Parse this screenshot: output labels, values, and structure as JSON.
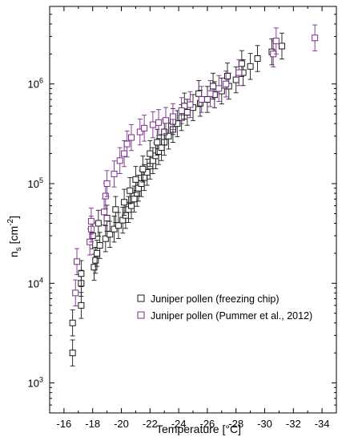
{
  "chart_data": {
    "type": "scatter",
    "xlabel": "Temperature [°C]",
    "ylabel_main": "n",
    "ylabel_sub": "s",
    "ylabel_unit_pre": " [cm",
    "ylabel_unit_sup": "-2",
    "ylabel_unit_post": "]",
    "xlim": [
      -15,
      -35
    ],
    "ylim": [
      500,
      6000000
    ],
    "yscale": "log",
    "x_ticks": [
      {
        "value": -16,
        "label": "-16"
      },
      {
        "value": -18,
        "label": "-18"
      },
      {
        "value": -20,
        "label": "-20"
      },
      {
        "value": -22,
        "label": "-22"
      },
      {
        "value": -24,
        "label": "-24"
      },
      {
        "value": -26,
        "label": "-26"
      },
      {
        "value": -28,
        "label": "-28"
      },
      {
        "value": -30,
        "label": "-30"
      },
      {
        "value": -32,
        "label": "-32"
      },
      {
        "value": -34,
        "label": "-34"
      }
    ],
    "y_ticks": [
      {
        "value": 1000,
        "base": "10",
        "exp": "3"
      },
      {
        "value": 10000,
        "base": "10",
        "exp": "4"
      },
      {
        "value": 100000,
        "base": "10",
        "exp": "5"
      },
      {
        "value": 1000000,
        "base": "10",
        "exp": "6"
      }
    ],
    "legend": {
      "placement": "bottom-right"
    },
    "series": [
      {
        "name": "Juniper pollen (freezing chip)",
        "color": "#1a1a1a",
        "marker": "open-square",
        "points": [
          [
            -16.6,
            2000
          ],
          [
            -16.6,
            4000
          ],
          [
            -17.2,
            6000
          ],
          [
            -17.2,
            10000
          ],
          [
            -17.2,
            12500
          ],
          [
            -18.1,
            14500
          ],
          [
            -18.2,
            17000
          ],
          [
            -18.3,
            20000
          ],
          [
            -18.5,
            24000
          ],
          [
            -18.9,
            28000
          ],
          [
            -19.2,
            31000
          ],
          [
            -19.5,
            35000
          ],
          [
            -19.8,
            38000
          ],
          [
            -20.1,
            43000
          ],
          [
            -20.3,
            48000
          ],
          [
            -20.5,
            55000
          ],
          [
            -20.7,
            60000
          ],
          [
            -20.9,
            70000
          ],
          [
            -21.1,
            80000
          ],
          [
            -21.2,
            90000
          ],
          [
            -21.4,
            100000
          ],
          [
            -21.6,
            115000
          ],
          [
            -21.8,
            130000
          ],
          [
            -22.0,
            150000
          ],
          [
            -22.2,
            170000
          ],
          [
            -22.4,
            190000
          ],
          [
            -22.6,
            210000
          ],
          [
            -22.8,
            230000
          ],
          [
            -23.0,
            260000
          ],
          [
            -23.3,
            300000
          ],
          [
            -23.6,
            350000
          ],
          [
            -23.9,
            400000
          ],
          [
            -24.2,
            460000
          ],
          [
            -24.6,
            520000
          ],
          [
            -25.0,
            580000
          ],
          [
            -25.5,
            640000
          ],
          [
            -26.0,
            700000
          ],
          [
            -26.5,
            780000
          ],
          [
            -27.0,
            850000
          ],
          [
            -27.5,
            950000
          ],
          [
            -28.0,
            1100000
          ],
          [
            -28.5,
            1300000
          ],
          [
            -29.0,
            1500000
          ],
          [
            -29.5,
            1800000
          ],
          [
            -30.5,
            2100000
          ],
          [
            -31.2,
            2400000
          ],
          [
            -18.0,
            30000
          ],
          [
            -18.4,
            40000
          ],
          [
            -19.0,
            45000
          ],
          [
            -19.6,
            55000
          ],
          [
            -20.2,
            65000
          ],
          [
            -20.6,
            85000
          ],
          [
            -21.0,
            110000
          ],
          [
            -21.5,
            140000
          ],
          [
            -22.0,
            200000
          ],
          [
            -22.5,
            260000
          ],
          [
            -23.0,
            330000
          ],
          [
            -23.6,
            420000
          ],
          [
            -24.4,
            600000
          ],
          [
            -25.4,
            800000
          ],
          [
            -26.4,
            950000
          ],
          [
            -27.4,
            1200000
          ],
          [
            -28.4,
            1600000
          ]
        ]
      },
      {
        "name": "Juniper pollen (Pummer et al., 2012)",
        "color": "#7b2d8e",
        "marker": "open-square",
        "points": [
          [
            -16.8,
            8000
          ],
          [
            -16.9,
            16500
          ],
          [
            -17.8,
            26000
          ],
          [
            -17.9,
            35000
          ],
          [
            -17.9,
            42000
          ],
          [
            -18.8,
            52000
          ],
          [
            -18.9,
            75000
          ],
          [
            -19.0,
            100000
          ],
          [
            -19.5,
            125000
          ],
          [
            -19.9,
            170000
          ],
          [
            -20.2,
            200000
          ],
          [
            -20.4,
            250000
          ],
          [
            -20.7,
            290000
          ],
          [
            -21.3,
            330000
          ],
          [
            -21.6,
            360000
          ],
          [
            -22.2,
            390000
          ],
          [
            -22.6,
            410000
          ],
          [
            -23.1,
            430000
          ],
          [
            -23.6,
            470000
          ],
          [
            -24.2,
            540000
          ],
          [
            -24.8,
            620000
          ],
          [
            -25.6,
            700000
          ],
          [
            -26.2,
            800000
          ],
          [
            -26.8,
            900000
          ],
          [
            -27.3,
            1000000
          ],
          [
            -28.2,
            1300000
          ],
          [
            -30.6,
            2000000
          ],
          [
            -30.8,
            2700000
          ],
          [
            -33.5,
            2900000
          ]
        ]
      }
    ]
  }
}
